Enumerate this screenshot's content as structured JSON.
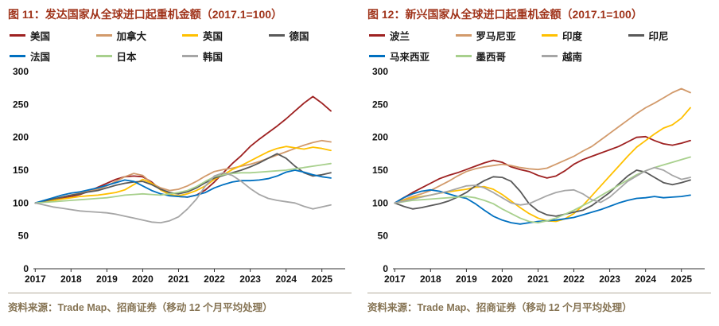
{
  "colors": {
    "title_red": "#A0341B",
    "source_text": "#867454",
    "axis": "#333333"
  },
  "source_note": "资料来源：Trade Map、招商证券（移动 12 个月平均处理）",
  "chart_data": [
    {
      "type": "line",
      "title": "图 11：发达国家从全球进口起重机金额（2017.1=100）",
      "xlabel": "",
      "ylabel": "",
      "ylim": [
        0,
        300
      ],
      "yticks": [
        0,
        50,
        100,
        150,
        200,
        250,
        300
      ],
      "xticks": [
        2017,
        2018,
        2019,
        2020,
        2021,
        2022,
        2023,
        2024,
        2025
      ],
      "grid": false,
      "legend_position": "top",
      "x": [
        2017.0,
        2017.25,
        2017.5,
        2017.75,
        2018.0,
        2018.25,
        2018.5,
        2018.75,
        2019.0,
        2019.25,
        2019.5,
        2019.75,
        2020.0,
        2020.25,
        2020.5,
        2020.75,
        2021.0,
        2021.25,
        2021.5,
        2021.75,
        2022.0,
        2022.25,
        2022.5,
        2022.75,
        2023.0,
        2023.25,
        2023.5,
        2023.75,
        2024.0,
        2024.25,
        2024.5,
        2024.75,
        2025.0,
        2025.25
      ],
      "series": [
        {
          "name": "美国",
          "color": "#9E2121",
          "values": [
            100,
            102,
            104,
            107,
            110,
            113,
            118,
            124,
            130,
            136,
            140,
            141,
            140,
            132,
            120,
            113,
            110,
            109,
            112,
            120,
            132,
            146,
            160,
            172,
            186,
            197,
            207,
            217,
            228,
            240,
            252,
            262,
            252,
            240
          ]
        },
        {
          "name": "加拿大",
          "color": "#D29A6B",
          "values": [
            100,
            103,
            106,
            109,
            112,
            115,
            118,
            121,
            126,
            133,
            140,
            145,
            142,
            130,
            123,
            119,
            121,
            126,
            133,
            141,
            148,
            151,
            153,
            156,
            159,
            163,
            168,
            173,
            178,
            183,
            188,
            192,
            195,
            193
          ]
        },
        {
          "name": "英国",
          "color": "#FFC000",
          "values": [
            100,
            102,
            104,
            106,
            108,
            110,
            111,
            112,
            114,
            116,
            120,
            128,
            136,
            130,
            120,
            113,
            111,
            114,
            119,
            126,
            136,
            143,
            151,
            157,
            164,
            171,
            178,
            183,
            186,
            184,
            182,
            185,
            183,
            180
          ]
        },
        {
          "name": "德国",
          "color": "#595959",
          "values": [
            100,
            103,
            106,
            109,
            112,
            114,
            117,
            119,
            123,
            127,
            130,
            132,
            133,
            128,
            121,
            116,
            114,
            117,
            123,
            131,
            138,
            142,
            146,
            150,
            155,
            161,
            168,
            175,
            168,
            156,
            146,
            141,
            143,
            146
          ]
        },
        {
          "name": "法国",
          "color": "#0070C0",
          "values": [
            100,
            104,
            108,
            112,
            115,
            117,
            120,
            123,
            127,
            131,
            135,
            133,
            126,
            119,
            114,
            111,
            110,
            109,
            112,
            116,
            123,
            128,
            132,
            134,
            134,
            135,
            137,
            141,
            147,
            150,
            147,
            143,
            140,
            138
          ]
        },
        {
          "name": "日本",
          "color": "#A8D08D",
          "values": [
            100,
            101,
            102,
            103,
            104,
            105,
            106,
            107,
            108,
            110,
            112,
            113,
            114,
            113,
            112,
            114,
            116,
            119,
            125,
            133,
            140,
            143,
            145,
            146,
            146,
            147,
            148,
            149,
            150,
            152,
            154,
            156,
            158,
            160
          ]
        },
        {
          "name": "韩国",
          "color": "#A6A6A6",
          "values": [
            100,
            97,
            94,
            92,
            90,
            88,
            87,
            86,
            85,
            83,
            80,
            77,
            74,
            71,
            70,
            73,
            79,
            91,
            106,
            126,
            141,
            146,
            142,
            133,
            122,
            113,
            107,
            104,
            102,
            100,
            95,
            91,
            94,
            97
          ]
        }
      ]
    },
    {
      "type": "line",
      "title": "图 12：新兴国家从全球进口起重机金额（2017.1=100）",
      "xlabel": "",
      "ylabel": "",
      "ylim": [
        0,
        300
      ],
      "yticks": [
        0,
        50,
        100,
        150,
        200,
        250,
        300
      ],
      "xticks": [
        2017,
        2018,
        2019,
        2020,
        2021,
        2022,
        2023,
        2024,
        2025
      ],
      "grid": false,
      "legend_position": "top",
      "x": [
        2017.0,
        2017.25,
        2017.5,
        2017.75,
        2018.0,
        2018.25,
        2018.5,
        2018.75,
        2019.0,
        2019.25,
        2019.5,
        2019.75,
        2020.0,
        2020.25,
        2020.5,
        2020.75,
        2021.0,
        2021.25,
        2021.5,
        2021.75,
        2022.0,
        2022.25,
        2022.5,
        2022.75,
        2023.0,
        2023.25,
        2023.5,
        2023.75,
        2024.0,
        2024.25,
        2024.5,
        2024.75,
        2025.0,
        2025.25
      ],
      "series": [
        {
          "name": "波兰",
          "color": "#9E2121",
          "values": [
            100,
            108,
            116,
            123,
            130,
            137,
            142,
            146,
            151,
            156,
            161,
            165,
            162,
            155,
            151,
            148,
            142,
            138,
            141,
            149,
            159,
            166,
            171,
            176,
            181,
            186,
            193,
            200,
            201,
            195,
            190,
            188,
            191,
            195
          ]
        },
        {
          "name": "罗马尼亚",
          "color": "#D29A6B",
          "values": [
            100,
            105,
            110,
            114,
            119,
            126,
            133,
            141,
            148,
            152,
            155,
            157,
            159,
            157,
            154,
            152,
            151,
            153,
            159,
            165,
            171,
            179,
            186,
            196,
            206,
            216,
            226,
            236,
            245,
            252,
            260,
            268,
            274,
            268
          ]
        },
        {
          "name": "印度",
          "color": "#FFC000",
          "values": [
            100,
            104,
            108,
            110,
            112,
            115,
            117,
            119,
            121,
            124,
            125,
            121,
            113,
            103,
            93,
            84,
            77,
            73,
            72,
            76,
            84,
            96,
            111,
            126,
            141,
            156,
            171,
            185,
            195,
            205,
            214,
            219,
            229,
            245
          ]
        },
        {
          "name": "印尼",
          "color": "#595959",
          "values": [
            100,
            95,
            91,
            93,
            96,
            99,
            103,
            109,
            116,
            126,
            134,
            140,
            139,
            133,
            118,
            99,
            88,
            82,
            80,
            83,
            86,
            89,
            96,
            106,
            116,
            129,
            141,
            150,
            147,
            139,
            131,
            128,
            131,
            135
          ]
        },
        {
          "name": "马来西亚",
          "color": "#0070C0",
          "values": [
            100,
            108,
            114,
            118,
            120,
            118,
            114,
            110,
            107,
            99,
            89,
            80,
            74,
            70,
            68,
            70,
            72,
            73,
            74,
            76,
            78,
            82,
            86,
            90,
            95,
            100,
            104,
            107,
            108,
            110,
            108,
            109,
            110,
            112
          ]
        },
        {
          "name": "墨西哥",
          "color": "#A8D08D",
          "values": [
            100,
            102,
            104,
            105,
            106,
            107,
            108,
            109,
            110,
            108,
            104,
            99,
            91,
            84,
            77,
            72,
            70,
            73,
            77,
            83,
            89,
            96,
            103,
            111,
            119,
            127,
            135,
            143,
            149,
            154,
            158,
            162,
            166,
            170
          ]
        },
        {
          "name": "越南",
          "color": "#A6A6A6",
          "values": [
            100,
            103,
            106,
            109,
            112,
            115,
            118,
            122,
            126,
            127,
            123,
            116,
            108,
            100,
            97,
            99,
            105,
            111,
            116,
            119,
            120,
            114,
            105,
            101,
            109,
            121,
            133,
            141,
            149,
            154,
            150,
            142,
            136,
            139
          ]
        }
      ]
    }
  ]
}
